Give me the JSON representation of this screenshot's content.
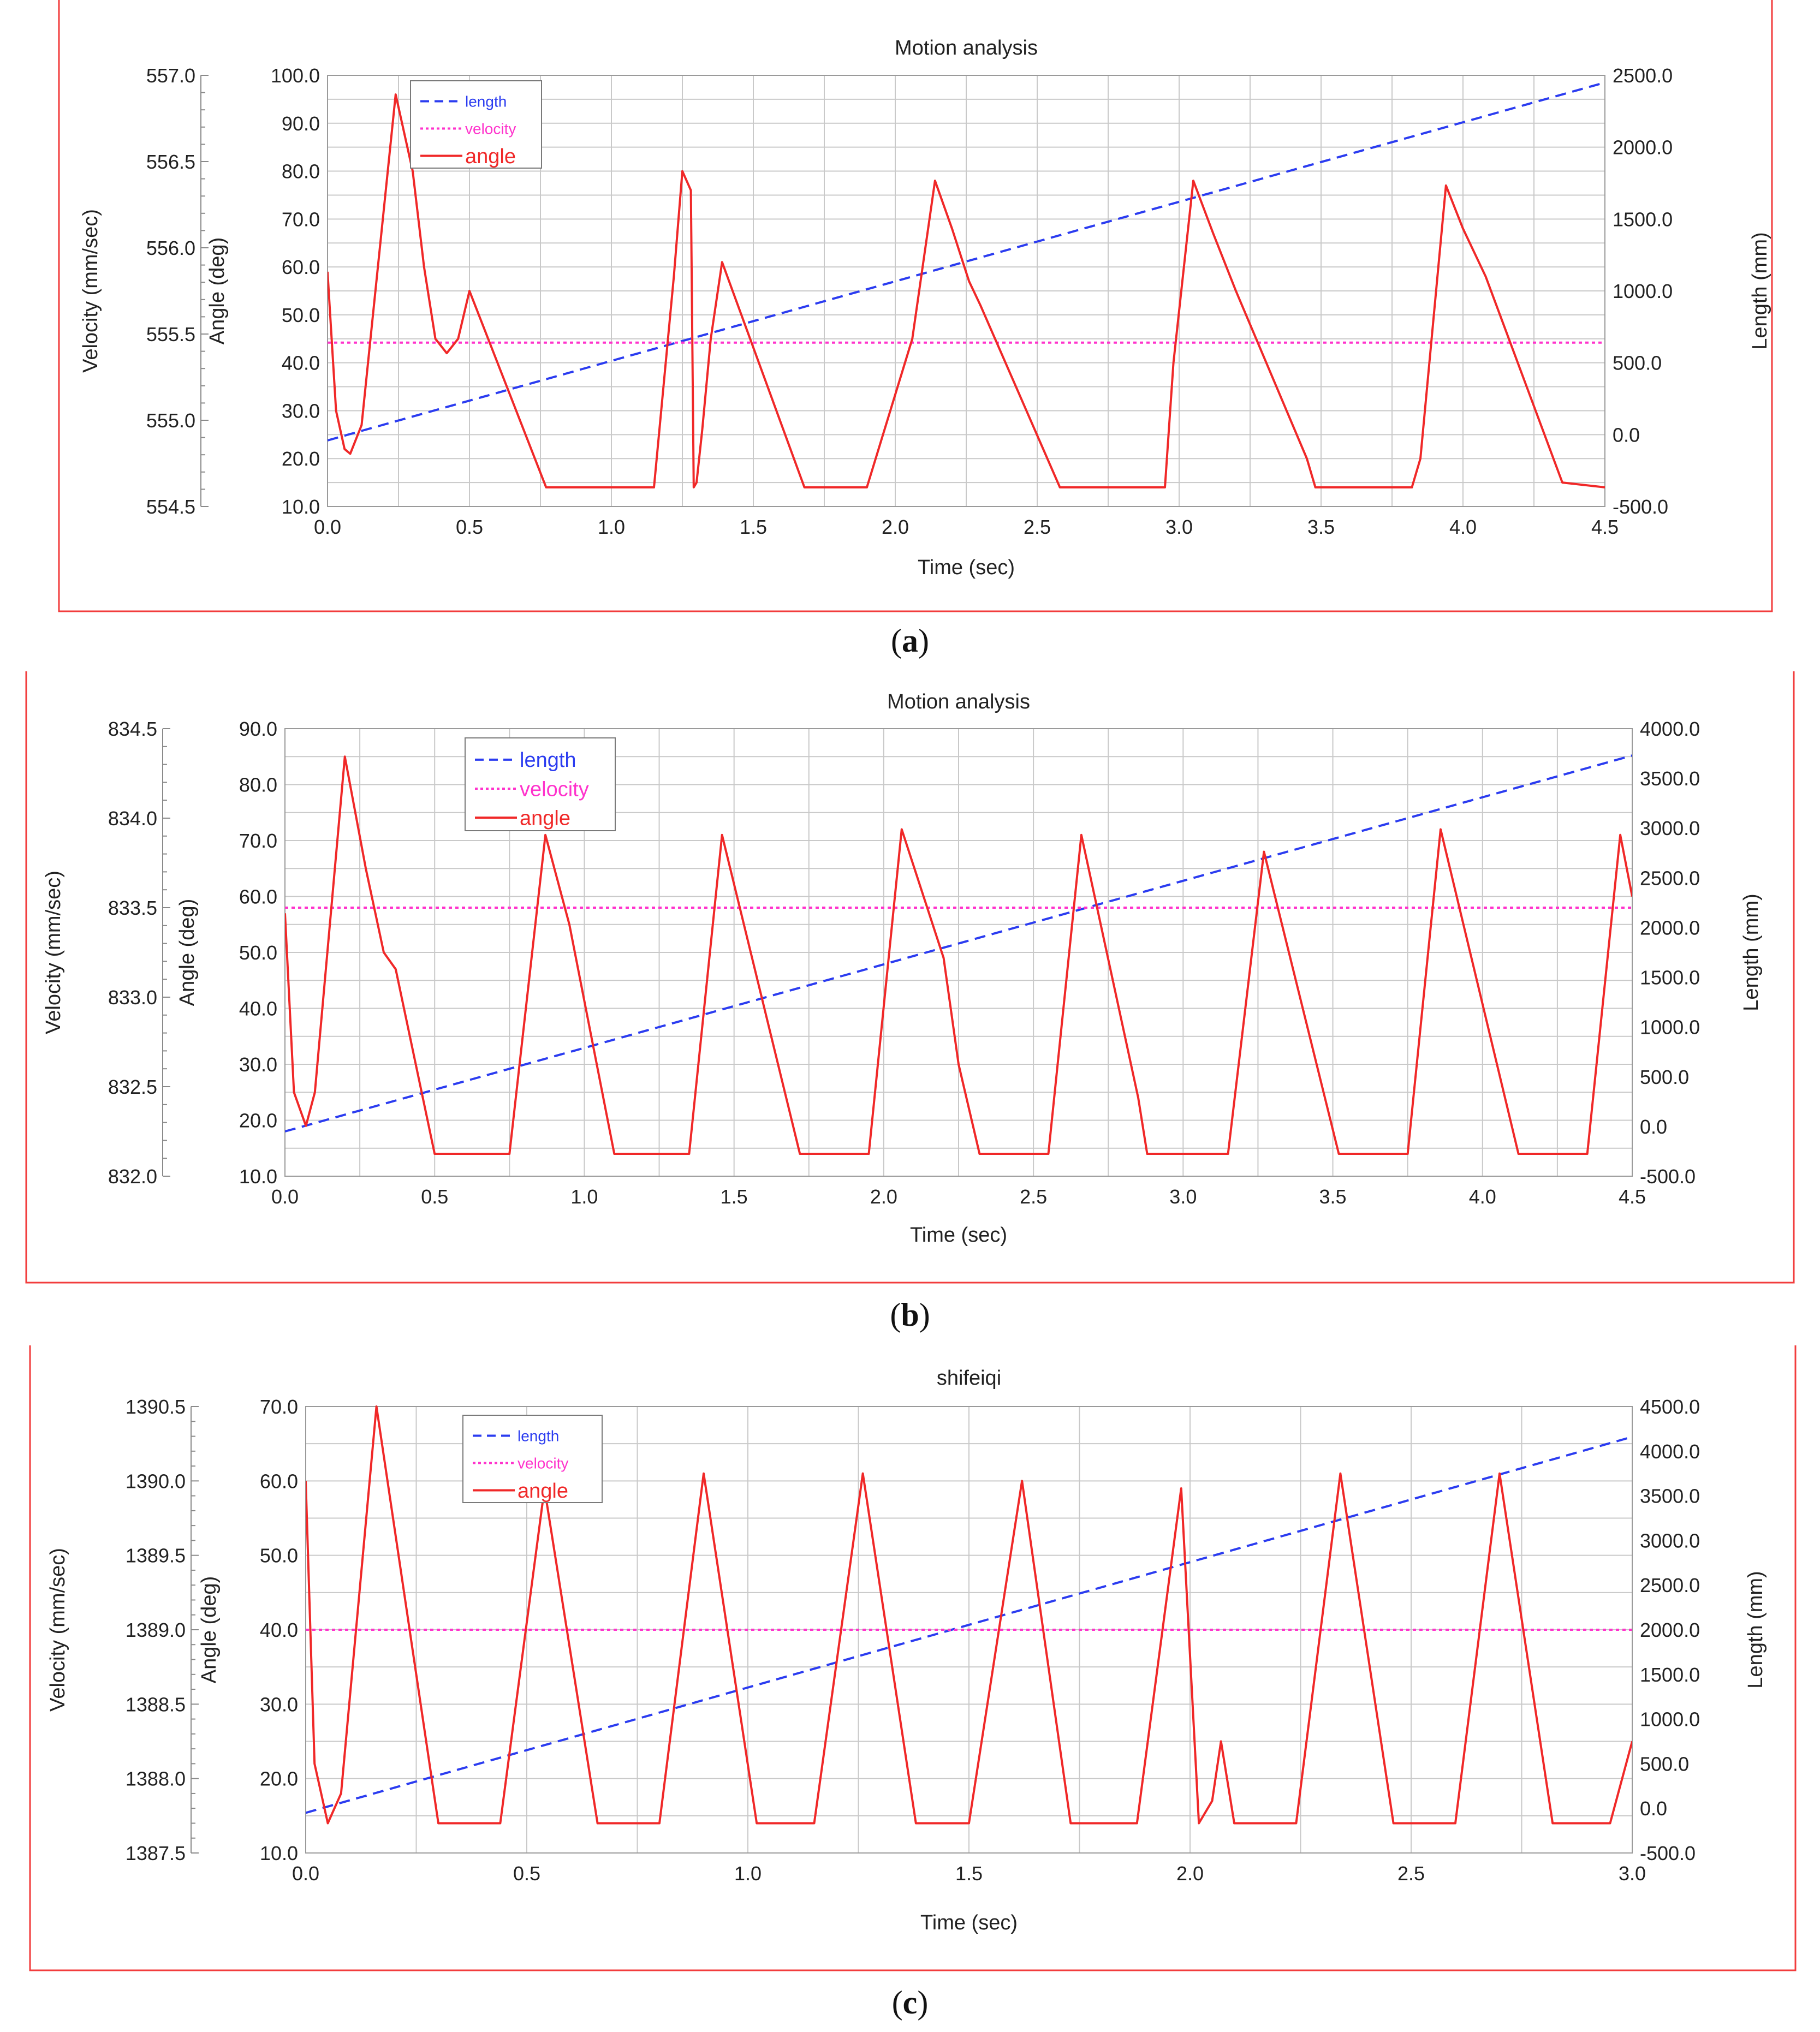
{
  "chart_data": [
    {
      "type": "line",
      "title": "Motion analysis",
      "caption_letter": "a",
      "xlabel": "Time (sec)",
      "xlim": [
        0,
        4.5
      ],
      "x_ticks": [
        "0.0",
        "0.5",
        "1.0",
        "1.5",
        "2.0",
        "2.5",
        "3.0",
        "3.5",
        "4.0",
        "4.5"
      ],
      "axes": {
        "velocity": {
          "label": "Velocity (mm/sec)",
          "lim": [
            554.5,
            557.0
          ],
          "ticks": [
            "554.5",
            "555.0",
            "555.5",
            "556.0",
            "556.5",
            "557.0"
          ]
        },
        "angle": {
          "label": "Angle (deg)",
          "lim": [
            10,
            100
          ],
          "ticks": [
            "10.0",
            "20.0",
            "30.0",
            "40.0",
            "50.0",
            "60.0",
            "70.0",
            "80.0",
            "90.0",
            "100.0"
          ]
        },
        "length": {
          "label": "Length (mm)",
          "lim": [
            -500,
            2500
          ],
          "ticks": [
            "-500.0",
            "0.0",
            "500.0",
            "1000.0",
            "1500.0",
            "2000.0",
            "2500.0"
          ]
        }
      },
      "legend": [
        "length",
        "velocity",
        "angle"
      ],
      "series": [
        {
          "name": "length",
          "axis": "length",
          "style": "dashed",
          "color": "#2b3cf0",
          "x": [
            0,
            4.5
          ],
          "y": [
            -40,
            2450
          ]
        },
        {
          "name": "velocity",
          "axis": "velocity",
          "style": "dotted",
          "color": "#ff33cc",
          "x": [
            0,
            4.5
          ],
          "y": [
            555.45,
            555.45
          ]
        },
        {
          "name": "angle",
          "axis": "angle",
          "style": "solid",
          "color": "#f02828",
          "x": [
            0,
            0.03,
            0.06,
            0.08,
            0.12,
            0.24,
            0.3,
            0.34,
            0.38,
            0.42,
            0.46,
            0.5,
            0.77,
            1.15,
            1.22,
            1.25,
            1.28,
            1.29,
            1.3,
            1.32,
            1.35,
            1.39,
            1.68,
            1.9,
            2.06,
            2.14,
            2.2,
            2.26,
            2.3,
            2.58,
            2.95,
            2.98,
            3.05,
            3.12,
            3.2,
            3.45,
            3.48,
            3.82,
            3.85,
            3.94,
            4.0,
            4.08,
            4.35,
            4.5
          ],
          "y": [
            59,
            30,
            22,
            21,
            27,
            96,
            80,
            60,
            45,
            42,
            45,
            55,
            14,
            14,
            58,
            80,
            76,
            14,
            15,
            26,
            45,
            61,
            14,
            14,
            45,
            78,
            68,
            57,
            52,
            14,
            14,
            40,
            78,
            67,
            55,
            20,
            14,
            14,
            20,
            77,
            68,
            58,
            15,
            14
          ]
        }
      ]
    },
    {
      "type": "line",
      "title": "Motion analysis",
      "caption_letter": "b",
      "xlabel": "Time (sec)",
      "xlim": [
        0,
        4.5
      ],
      "x_ticks": [
        "0.0",
        "0.5",
        "1.0",
        "1.5",
        "2.0",
        "2.5",
        "3.0",
        "3.5",
        "4.0",
        "4.5"
      ],
      "axes": {
        "velocity": {
          "label": "Velocity (mm/sec)",
          "lim": [
            832.0,
            834.5
          ],
          "ticks": [
            "832.0",
            "832.5",
            "833.0",
            "833.5",
            "834.0",
            "834.5"
          ]
        },
        "angle": {
          "label": "Angle (deg)",
          "lim": [
            10,
            90
          ],
          "ticks": [
            "10.0",
            "20.0",
            "30.0",
            "40.0",
            "50.0",
            "60.0",
            "70.0",
            "80.0",
            "90.0"
          ]
        },
        "length": {
          "label": "Length (mm)",
          "lim": [
            -500,
            4000
          ],
          "ticks": [
            "-500.0",
            "0.0",
            "500.0",
            "1000.0",
            "1500.0",
            "2000.0",
            "2500.0",
            "3000.0",
            "3500.0",
            "4000.0"
          ]
        }
      },
      "legend": [
        "length",
        "velocity",
        "angle"
      ],
      "series": [
        {
          "name": "length",
          "axis": "length",
          "style": "dashed",
          "color": "#2b3cf0",
          "x": [
            0,
            4.5
          ],
          "y": [
            -50,
            3730
          ]
        },
        {
          "name": "velocity",
          "axis": "velocity",
          "style": "dotted",
          "color": "#ff33cc",
          "x": [
            0,
            4.5
          ],
          "y": [
            833.5,
            833.5
          ]
        },
        {
          "name": "angle",
          "axis": "angle",
          "style": "solid",
          "color": "#f02828",
          "x": [
            0,
            0.03,
            0.07,
            0.1,
            0.2,
            0.27,
            0.33,
            0.37,
            0.5,
            0.75,
            0.87,
            0.95,
            1.1,
            1.35,
            1.46,
            1.72,
            1.95,
            2.06,
            2.2,
            2.25,
            2.32,
            2.55,
            2.66,
            2.85,
            2.88,
            3.15,
            3.27,
            3.52,
            3.75,
            3.86,
            4.12,
            4.35,
            4.46,
            4.5
          ],
          "y": [
            57,
            25,
            19,
            25,
            85,
            65,
            50,
            47,
            14,
            14,
            71,
            55,
            14,
            14,
            71,
            14,
            14,
            72,
            49,
            30,
            14,
            14,
            71,
            24,
            14,
            14,
            68,
            14,
            14,
            72,
            14,
            14,
            71,
            60
          ]
        }
      ]
    },
    {
      "type": "line",
      "title": "shifeiqi",
      "caption_letter": "c",
      "xlabel": "Time (sec)",
      "xlim": [
        0,
        3.0
      ],
      "x_ticks": [
        "0.0",
        "0.5",
        "1.0",
        "1.5",
        "2.0",
        "2.5",
        "3.0"
      ],
      "axes": {
        "velocity": {
          "label": "Velocity (mm/sec)",
          "lim": [
            1387.5,
            1390.5
          ],
          "ticks": [
            "1387.5",
            "1388.0",
            "1388.5",
            "1389.0",
            "1389.5",
            "1390.0",
            "1390.5"
          ]
        },
        "angle": {
          "label": "Angle (deg)",
          "lim": [
            10,
            70
          ],
          "ticks": [
            "10.0",
            "20.0",
            "30.0",
            "40.0",
            "50.0",
            "60.0",
            "70.0"
          ]
        },
        "length": {
          "label": "Length (mm)",
          "lim": [
            -500,
            4500
          ],
          "ticks": [
            "-500.0",
            "0.0",
            "500.0",
            "1000.0",
            "1500.0",
            "2000.0",
            "2500.0",
            "3000.0",
            "3500.0",
            "4000.0",
            "4500.0"
          ]
        }
      },
      "legend": [
        "length",
        "velocity",
        "angle"
      ],
      "series": [
        {
          "name": "length",
          "axis": "length",
          "style": "dashed",
          "color": "#2b3cf0",
          "x": [
            0,
            3.0
          ],
          "y": [
            -50,
            4160
          ]
        },
        {
          "name": "velocity",
          "axis": "velocity",
          "style": "dotted",
          "color": "#ff33cc",
          "x": [
            0,
            3.0
          ],
          "y": [
            1389.0,
            1389.0
          ]
        },
        {
          "name": "angle",
          "axis": "angle",
          "style": "solid",
          "color": "#f02828",
          "x": [
            0,
            0.02,
            0.05,
            0.08,
            0.16,
            0.3,
            0.44,
            0.54,
            0.66,
            0.8,
            0.9,
            1.02,
            1.15,
            1.26,
            1.38,
            1.5,
            1.62,
            1.73,
            1.88,
            1.98,
            2.02,
            2.05,
            2.07,
            2.1,
            2.13,
            2.24,
            2.34,
            2.46,
            2.6,
            2.7,
            2.82,
            2.95,
            3.0
          ],
          "y": [
            60,
            22,
            14,
            18,
            70,
            14,
            14,
            59,
            14,
            14,
            61,
            14,
            14,
            61,
            14,
            14,
            60,
            14,
            14,
            59,
            14,
            17,
            25,
            14,
            14,
            14,
            61,
            14,
            14,
            61,
            14,
            14,
            25
          ]
        }
      ]
    }
  ]
}
